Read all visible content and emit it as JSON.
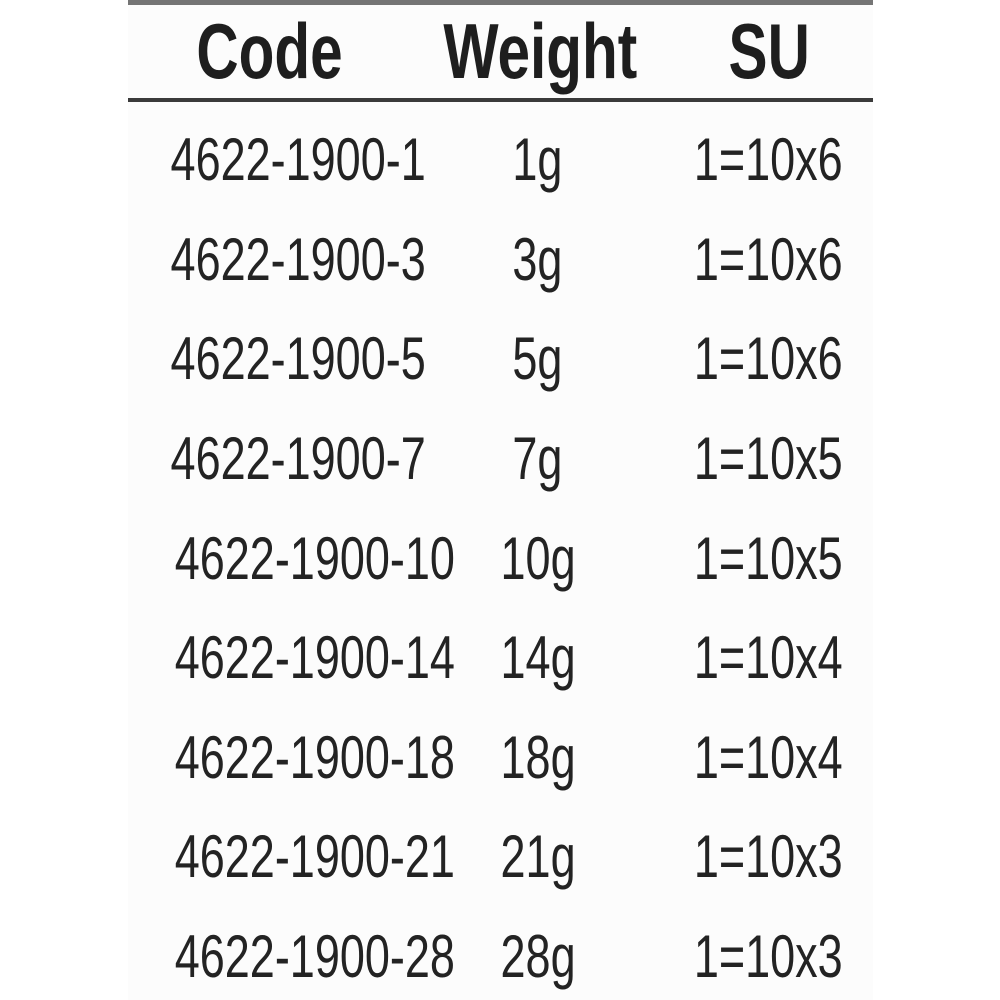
{
  "colors": {
    "text": "#232323",
    "header_text": "#1e1e1e",
    "top_rule": "#757575",
    "header_rule": "#3b3b3b",
    "paper": "#ffffff",
    "table_bg": "#fcfcfc"
  },
  "table": {
    "headers": [
      "Code",
      "Weight",
      "SU"
    ],
    "rows": [
      {
        "code": "4622-1900-1",
        "weight": "1g",
        "su": "1=10x6"
      },
      {
        "code": "4622-1900-3",
        "weight": "3g",
        "su": "1=10x6"
      },
      {
        "code": "4622-1900-5",
        "weight": "5g",
        "su": "1=10x6"
      },
      {
        "code": "4622-1900-7",
        "weight": "7g",
        "su": "1=10x5"
      },
      {
        "code": "4622-1900-10",
        "weight": "10g",
        "su": "1=10x5"
      },
      {
        "code": "4622-1900-14",
        "weight": "14g",
        "su": "1=10x4"
      },
      {
        "code": "4622-1900-18",
        "weight": "18g",
        "su": "1=10x4"
      },
      {
        "code": "4622-1900-21",
        "weight": "21g",
        "su": "1=10x3"
      },
      {
        "code": "4622-1900-28",
        "weight": "28g",
        "su": "1=10x3"
      }
    ]
  }
}
